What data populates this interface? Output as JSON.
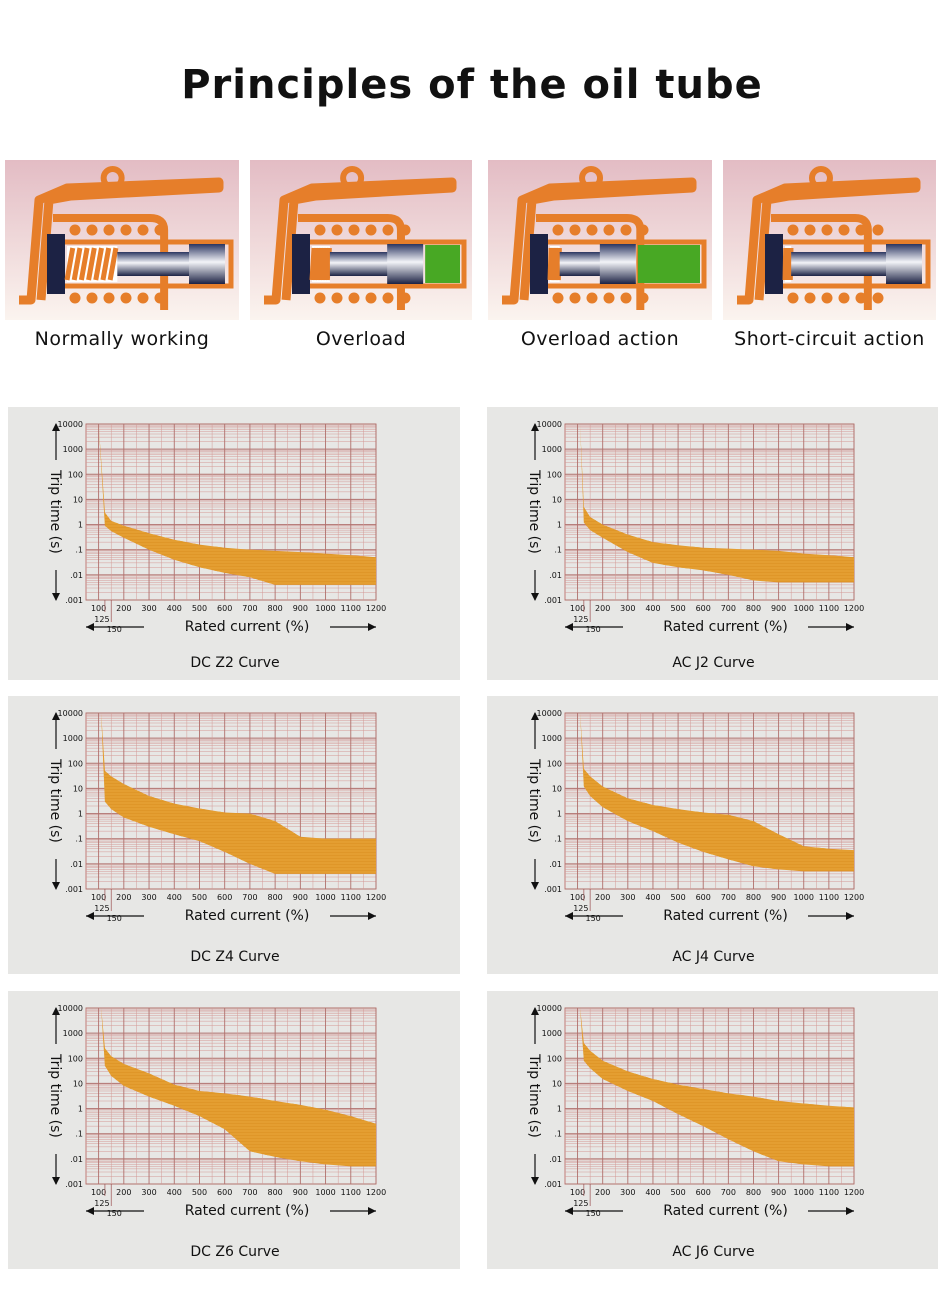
{
  "page": {
    "title": "Principles of the oil tube",
    "principles": [
      {
        "label": "Normally working",
        "state": "normal"
      },
      {
        "label": "Overload",
        "state": "overload"
      },
      {
        "label": "Overload action",
        "state": "overload-action"
      },
      {
        "label": "Short-circuit action",
        "state": "short-circuit"
      }
    ],
    "colors": {
      "frame": "#e67e2a",
      "band": "#df9628",
      "grid": "#c27b78",
      "panel_bg": "#e7e7e5",
      "plunger_fill": "#48a824",
      "spring": "#e67e2a"
    }
  },
  "chart_data": [
    {
      "type": "area",
      "title": "DC Z2 Curve",
      "xlabel": "Rated current (%)",
      "ylabel": "Trip time (s)",
      "y_scale": "log",
      "xlim": [
        50,
        1200
      ],
      "ylim": [
        0.001,
        10000
      ],
      "x_ticks": [
        "100",
        "200",
        "300",
        "400",
        "500",
        "600",
        "700",
        "800",
        "900",
        "1000",
        "1100",
        "1200"
      ],
      "x_extra_ticks": [
        "125",
        "150"
      ],
      "y_ticks": [
        "10000",
        "1000",
        "100",
        "10",
        "1",
        ".1",
        ".01",
        ".001"
      ],
      "upper": {
        "x": [
          100,
          125,
          150,
          200,
          300,
          400,
          500,
          600,
          700,
          800,
          900,
          1000,
          1100,
          1200
        ],
        "y": [
          10000,
          3,
          1.4,
          0.9,
          0.45,
          0.25,
          0.16,
          0.12,
          0.1,
          0.09,
          0.08,
          0.07,
          0.06,
          0.05
        ]
      },
      "lower": {
        "x": [
          100,
          125,
          150,
          200,
          300,
          400,
          500,
          600,
          700,
          800,
          900,
          1000,
          1100,
          1200
        ],
        "y": [
          10000,
          0.9,
          0.55,
          0.3,
          0.1,
          0.04,
          0.02,
          0.012,
          0.008,
          0.004,
          0.004,
          0.004,
          0.004,
          0.004
        ]
      }
    },
    {
      "type": "area",
      "title": "AC J2 Curve",
      "xlabel": "Rated current (%)",
      "ylabel": "Trip time (s)",
      "y_scale": "log",
      "xlim": [
        50,
        1200
      ],
      "ylim": [
        0.001,
        10000
      ],
      "x_ticks": [
        "100",
        "200",
        "300",
        "400",
        "500",
        "600",
        "700",
        "800",
        "900",
        "1000",
        "1100",
        "1200"
      ],
      "x_extra_ticks": [
        "125",
        "150"
      ],
      "y_ticks": [
        "10000",
        "1000",
        "100",
        "10",
        "1",
        ".1",
        ".01",
        ".001"
      ],
      "upper": {
        "x": [
          100,
          110,
          125,
          150,
          200,
          300,
          400,
          500,
          600,
          700,
          800,
          900,
          1000,
          1100,
          1200
        ],
        "y": [
          10000,
          10000,
          5,
          2,
          1,
          0.4,
          0.2,
          0.15,
          0.12,
          0.11,
          0.1,
          0.09,
          0.07,
          0.06,
          0.05
        ]
      },
      "lower": {
        "x": [
          100,
          110,
          125,
          150,
          200,
          300,
          400,
          500,
          600,
          700,
          800,
          900,
          1000,
          1100,
          1200
        ],
        "y": [
          10000,
          10000,
          1.2,
          0.6,
          0.3,
          0.08,
          0.03,
          0.02,
          0.015,
          0.01,
          0.006,
          0.005,
          0.005,
          0.005,
          0.005
        ]
      }
    },
    {
      "type": "area",
      "title": "DC Z4 Curve",
      "xlabel": "Rated current (%)",
      "ylabel": "Trip time (s)",
      "y_scale": "log",
      "xlim": [
        50,
        1200
      ],
      "ylim": [
        0.001,
        10000
      ],
      "x_ticks": [
        "100",
        "200",
        "300",
        "400",
        "500",
        "600",
        "700",
        "800",
        "900",
        "1000",
        "1100",
        "1200"
      ],
      "x_extra_ticks": [
        "125",
        "150"
      ],
      "y_ticks": [
        "10000",
        "1000",
        "100",
        "10",
        "1",
        ".1",
        ".01",
        ".001"
      ],
      "upper": {
        "x": [
          100,
          110,
          125,
          150,
          200,
          300,
          400,
          500,
          600,
          700,
          800,
          900,
          1000,
          1100,
          1200
        ],
        "y": [
          10000,
          10000,
          50,
          30,
          15,
          5,
          2.5,
          1.6,
          1.1,
          1,
          0.5,
          0.12,
          0.1,
          0.1,
          0.1
        ]
      },
      "lower": {
        "x": [
          100,
          110,
          125,
          150,
          200,
          300,
          400,
          500,
          600,
          700,
          800,
          900,
          1000,
          1100,
          1200
        ],
        "y": [
          10000,
          10000,
          3,
          1.5,
          0.7,
          0.3,
          0.15,
          0.08,
          0.03,
          0.01,
          0.004,
          0.004,
          0.004,
          0.004,
          0.004
        ]
      }
    },
    {
      "type": "area",
      "title": "AC J4 Curve",
      "xlabel": "Rated current (%)",
      "ylabel": "Trip time (s)",
      "y_scale": "log",
      "xlim": [
        50,
        1200
      ],
      "ylim": [
        0.001,
        10000
      ],
      "x_ticks": [
        "100",
        "200",
        "300",
        "400",
        "500",
        "600",
        "700",
        "800",
        "900",
        "1000",
        "1100",
        "1200"
      ],
      "x_extra_ticks": [
        "125",
        "150"
      ],
      "y_ticks": [
        "10000",
        "1000",
        "100",
        "10",
        "1",
        ".1",
        ".01",
        ".001"
      ],
      "upper": {
        "x": [
          100,
          110,
          125,
          150,
          200,
          300,
          400,
          500,
          600,
          700,
          800,
          900,
          1000,
          1100,
          1200
        ],
        "y": [
          10000,
          10000,
          60,
          30,
          12,
          4,
          2.2,
          1.5,
          1.1,
          0.9,
          0.5,
          0.15,
          0.05,
          0.04,
          0.035
        ]
      },
      "lower": {
        "x": [
          100,
          110,
          125,
          150,
          200,
          300,
          400,
          500,
          600,
          700,
          800,
          900,
          1000,
          1100,
          1200
        ],
        "y": [
          10000,
          10000,
          12,
          5,
          1.8,
          0.5,
          0.2,
          0.07,
          0.03,
          0.015,
          0.008,
          0.006,
          0.005,
          0.005,
          0.005
        ]
      }
    },
    {
      "type": "area",
      "title": "DC Z6 Curve",
      "xlabel": "Rated current (%)",
      "ylabel": "Trip time (s)",
      "y_scale": "log",
      "xlim": [
        50,
        1200
      ],
      "ylim": [
        0.001,
        10000
      ],
      "x_ticks": [
        "100",
        "200",
        "300",
        "400",
        "500",
        "600",
        "700",
        "800",
        "900",
        "1000",
        "1100",
        "1200"
      ],
      "x_extra_ticks": [
        "125",
        "150"
      ],
      "y_ticks": [
        "10000",
        "1000",
        "100",
        "10",
        "1",
        ".1",
        ".01",
        ".001"
      ],
      "upper": {
        "x": [
          100,
          110,
          125,
          150,
          200,
          300,
          400,
          500,
          600,
          700,
          800,
          900,
          1000,
          1100,
          1200
        ],
        "y": [
          10000,
          10000,
          250,
          120,
          60,
          25,
          9,
          5,
          4,
          3,
          2,
          1.4,
          0.9,
          0.5,
          0.25
        ]
      },
      "lower": {
        "x": [
          100,
          110,
          125,
          150,
          200,
          300,
          400,
          500,
          600,
          700,
          800,
          900,
          1000,
          1100,
          1200
        ],
        "y": [
          10000,
          10000,
          50,
          20,
          8,
          3,
          1.3,
          0.5,
          0.15,
          0.02,
          0.012,
          0.008,
          0.006,
          0.005,
          0.005
        ]
      }
    },
    {
      "type": "area",
      "title": "AC J6 Curve",
      "xlabel": "Rated current (%)",
      "ylabel": "Trip time (s)",
      "y_scale": "log",
      "xlim": [
        50,
        1200
      ],
      "ylim": [
        0.001,
        10000
      ],
      "x_ticks": [
        "100",
        "200",
        "300",
        "400",
        "500",
        "600",
        "700",
        "800",
        "900",
        "1000",
        "1100",
        "1200"
      ],
      "x_extra_ticks": [
        "125",
        "150"
      ],
      "y_ticks": [
        "10000",
        "1000",
        "100",
        "10",
        "1",
        ".1",
        ".01",
        ".001"
      ],
      "upper": {
        "x": [
          100,
          110,
          125,
          150,
          200,
          300,
          400,
          500,
          600,
          700,
          800,
          900,
          1000,
          1100,
          1200
        ],
        "y": [
          10000,
          10000,
          400,
          200,
          80,
          30,
          15,
          9,
          6,
          4,
          3,
          2,
          1.6,
          1.3,
          1.1
        ]
      },
      "lower": {
        "x": [
          100,
          110,
          125,
          150,
          200,
          300,
          400,
          500,
          600,
          700,
          800,
          900,
          1000,
          1100,
          1200
        ],
        "y": [
          10000,
          10000,
          80,
          40,
          15,
          5,
          2,
          0.6,
          0.2,
          0.06,
          0.02,
          0.008,
          0.006,
          0.005,
          0.005
        ]
      }
    }
  ]
}
